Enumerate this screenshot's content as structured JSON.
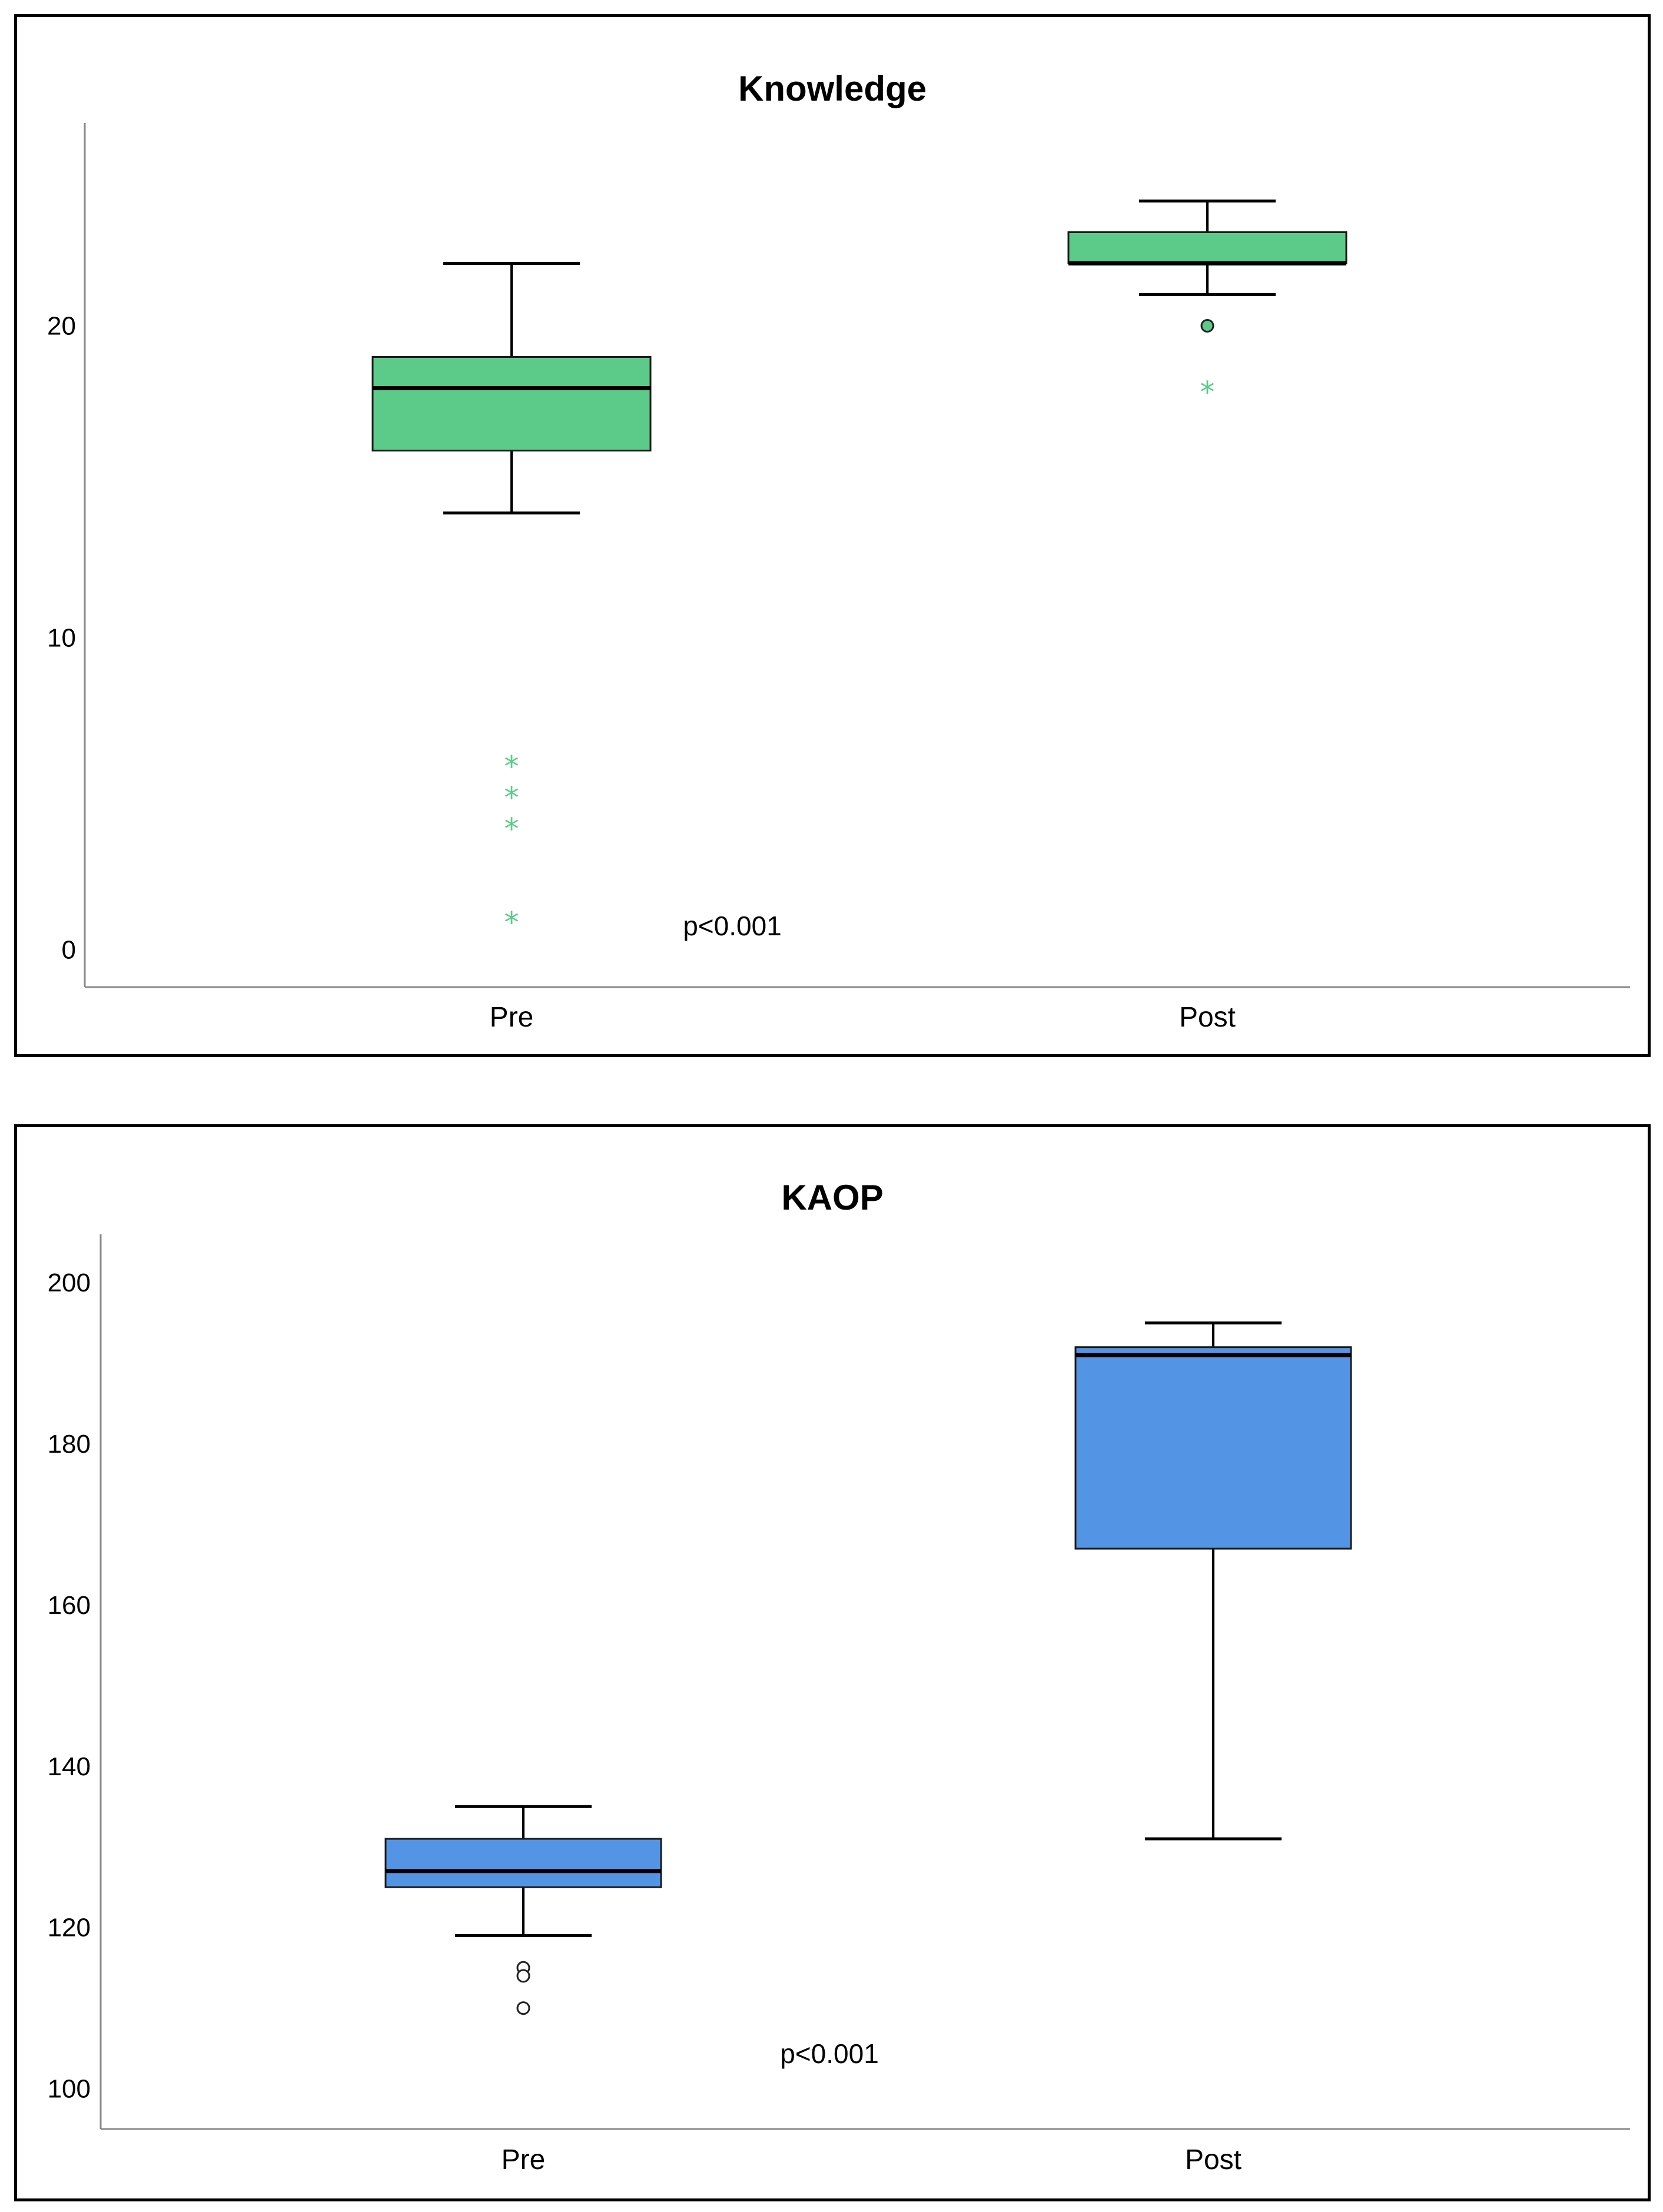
{
  "chart_data": [
    {
      "type": "box",
      "title": "Knowledge",
      "categories": [
        "Pre",
        "Post"
      ],
      "y_ticks": [
        "0",
        "10",
        "20"
      ],
      "ylim": [
        -1.2,
        26.5
      ],
      "annotation": "p<0.001",
      "box_color": "#5ccb8a",
      "outlier_color": "#5ccb8a",
      "boxes": [
        {
          "category": "Pre",
          "whisker_low": 14,
          "q1": 16,
          "median": 18,
          "q3": 19,
          "whisker_high": 22,
          "outliers_circle": [],
          "outliers_extreme": [
            6,
            5,
            4,
            1
          ]
        },
        {
          "category": "Post",
          "whisker_low": 21,
          "q1": 22,
          "median": 22,
          "q3": 23,
          "whisker_high": 24,
          "outliers_circle": [
            20
          ],
          "outliers_extreme": [
            18
          ]
        }
      ]
    },
    {
      "type": "box",
      "title": "KAOP",
      "categories": [
        "Pre",
        "Post"
      ],
      "y_ticks": [
        "100",
        "120",
        "140",
        "160",
        "180",
        "200"
      ],
      "ylim": [
        95,
        206
      ],
      "annotation": "p<0.001",
      "box_color": "#5494e4",
      "outlier_color": "#000000",
      "boxes": [
        {
          "category": "Pre",
          "whisker_low": 119,
          "q1": 125,
          "median": 127,
          "q3": 131,
          "whisker_high": 135,
          "outliers_circle": [
            115,
            114,
            110
          ],
          "outliers_extreme": []
        },
        {
          "category": "Post",
          "whisker_low": 131,
          "q1": 167,
          "median": 191,
          "q3": 192,
          "whisker_high": 195,
          "outliers_circle": [],
          "outliers_extreme": []
        }
      ]
    }
  ]
}
